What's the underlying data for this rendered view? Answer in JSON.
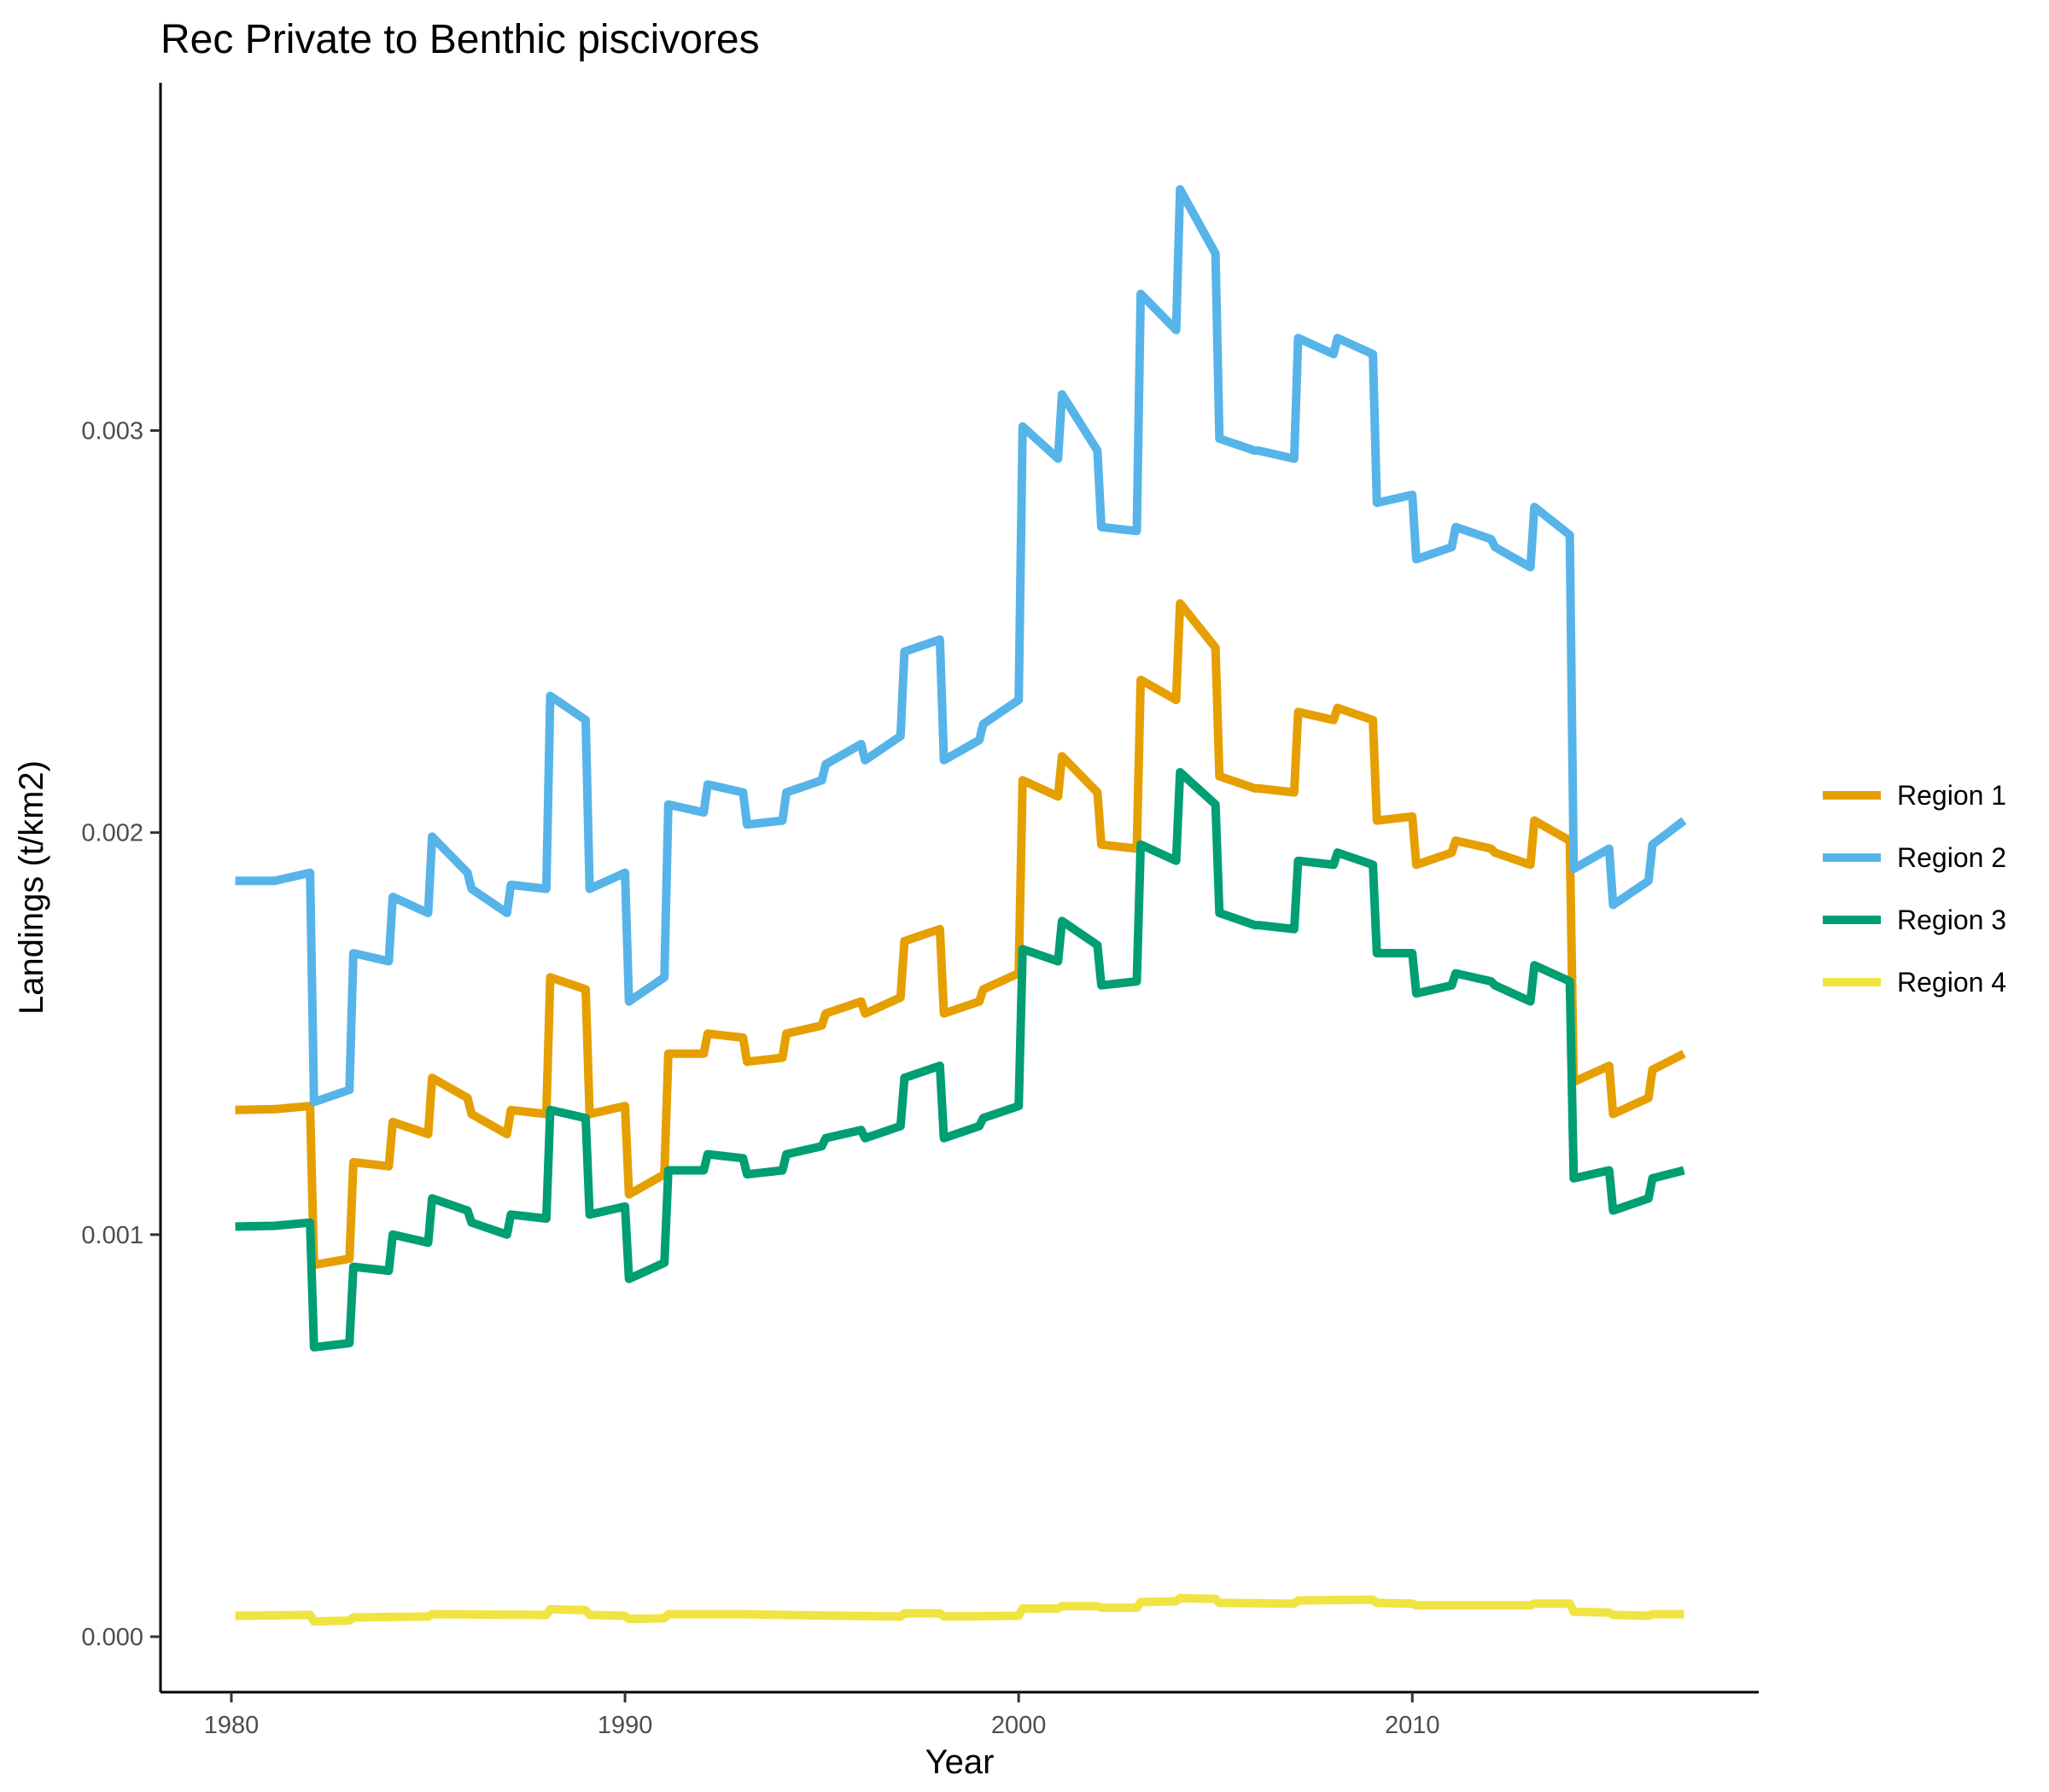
{
  "chart_data": {
    "type": "line",
    "title": "Rec Private to Benthic piscivores",
    "xlabel": "Year",
    "ylabel": "Landings (t/km2)",
    "xlim": [
      1978.2,
      2018.8
    ],
    "ylim": [
      -0.000138,
      0.003865
    ],
    "x_ticks": [
      1980,
      1990,
      2000,
      2010
    ],
    "y_ticks": [
      0.0,
      0.001,
      0.002,
      0.003
    ],
    "y_tick_labels": [
      "0.000",
      "0.001",
      "0.002",
      "0.003"
    ],
    "grid": false,
    "legend_position": "right",
    "colors": [
      "#E69F00",
      "#56B4E9",
      "#009E73",
      "#F0E442"
    ],
    "series": [
      {
        "name": "Region 1",
        "points": [
          [
            1980.1,
            0.00131
          ],
          [
            1981.1,
            0.001312
          ],
          [
            1982,
            0.00132
          ],
          [
            1982.1,
            0.000925
          ],
          [
            1983,
            0.00094
          ],
          [
            1983.1,
            0.00118
          ],
          [
            1984,
            0.00117
          ],
          [
            1984.1,
            0.00128
          ],
          [
            1985,
            0.00125
          ],
          [
            1985.1,
            0.00139
          ],
          [
            1986,
            0.00134
          ],
          [
            1986.1,
            0.0013
          ],
          [
            1987,
            0.00125
          ],
          [
            1987.1,
            0.00131
          ],
          [
            1988,
            0.0013
          ],
          [
            1988.1,
            0.00164
          ],
          [
            1989,
            0.00161
          ],
          [
            1989.1,
            0.0013
          ],
          [
            1990,
            0.00132
          ],
          [
            1990.1,
            0.0011
          ],
          [
            1991,
            0.00115
          ],
          [
            1991.1,
            0.00145
          ],
          [
            1992,
            0.00145
          ],
          [
            1992.1,
            0.0015
          ],
          [
            1993,
            0.00149
          ],
          [
            1993.1,
            0.00143
          ],
          [
            1994,
            0.00144
          ],
          [
            1994.1,
            0.0015
          ],
          [
            1995,
            0.00152
          ],
          [
            1995.1,
            0.00155
          ],
          [
            1996,
            0.00158
          ],
          [
            1996.1,
            0.00155
          ],
          [
            1997,
            0.00159
          ],
          [
            1997.1,
            0.00173
          ],
          [
            1998,
            0.00176
          ],
          [
            1998.1,
            0.00155
          ],
          [
            1999,
            0.00158
          ],
          [
            1999.1,
            0.00161
          ],
          [
            2000,
            0.00165
          ],
          [
            2000.1,
            0.00213
          ],
          [
            2001,
            0.00209
          ],
          [
            2001.1,
            0.00219
          ],
          [
            2002,
            0.0021
          ],
          [
            2002.1,
            0.00197
          ],
          [
            2003,
            0.00196
          ],
          [
            2003.1,
            0.00238
          ],
          [
            2004,
            0.00233
          ],
          [
            2004.1,
            0.00257
          ],
          [
            2005,
            0.00246
          ],
          [
            2005.1,
            0.00214
          ],
          [
            2006,
            0.00211
          ],
          [
            2006.1,
            0.00211
          ],
          [
            2007,
            0.0021
          ],
          [
            2007.1,
            0.0023
          ],
          [
            2008,
            0.00228
          ],
          [
            2008.1,
            0.00231
          ],
          [
            2009,
            0.00228
          ],
          [
            2009.1,
            0.00203
          ],
          [
            2010,
            0.00204
          ],
          [
            2010.1,
            0.00192
          ],
          [
            2011,
            0.00195
          ],
          [
            2011.1,
            0.00198
          ],
          [
            2012,
            0.00196
          ],
          [
            2012.1,
            0.00195
          ],
          [
            2013,
            0.00192
          ],
          [
            2013.1,
            0.00203
          ],
          [
            2014,
            0.00198
          ],
          [
            2014.1,
            0.00138
          ],
          [
            2015,
            0.00142
          ],
          [
            2015.1,
            0.0013
          ],
          [
            2016,
            0.00134
          ],
          [
            2016.1,
            0.00141
          ],
          [
            2016.9,
            0.00145
          ]
        ]
      },
      {
        "name": "Region 2",
        "points": [
          [
            1980.1,
            0.00188
          ],
          [
            1981.1,
            0.00188
          ],
          [
            1982,
            0.0019
          ],
          [
            1982.1,
            0.00133
          ],
          [
            1983,
            0.00136
          ],
          [
            1983.1,
            0.0017
          ],
          [
            1984,
            0.00168
          ],
          [
            1984.1,
            0.00184
          ],
          [
            1985,
            0.0018
          ],
          [
            1985.1,
            0.00199
          ],
          [
            1986,
            0.0019
          ],
          [
            1986.1,
            0.00186
          ],
          [
            1987,
            0.0018
          ],
          [
            1987.1,
            0.00187
          ],
          [
            1988,
            0.00186
          ],
          [
            1988.1,
            0.00234
          ],
          [
            1989,
            0.00228
          ],
          [
            1989.1,
            0.00186
          ],
          [
            1990,
            0.0019
          ],
          [
            1990.1,
            0.00158
          ],
          [
            1991,
            0.00164
          ],
          [
            1991.1,
            0.00207
          ],
          [
            1992,
            0.00205
          ],
          [
            1992.1,
            0.00212
          ],
          [
            1993,
            0.0021
          ],
          [
            1993.1,
            0.00202
          ],
          [
            1994,
            0.00203
          ],
          [
            1994.1,
            0.0021
          ],
          [
            1995,
            0.00213
          ],
          [
            1995.1,
            0.00217
          ],
          [
            1996,
            0.00222
          ],
          [
            1996.1,
            0.00218
          ],
          [
            1997,
            0.00224
          ],
          [
            1997.1,
            0.00245
          ],
          [
            1998,
            0.00248
          ],
          [
            1998.1,
            0.00218
          ],
          [
            1999,
            0.00223
          ],
          [
            1999.1,
            0.00227
          ],
          [
            2000,
            0.00233
          ],
          [
            2000.1,
            0.00301
          ],
          [
            2001,
            0.00293
          ],
          [
            2001.1,
            0.00309
          ],
          [
            2002,
            0.00295
          ],
          [
            2002.1,
            0.00276
          ],
          [
            2003,
            0.00275
          ],
          [
            2003.1,
            0.00334
          ],
          [
            2004,
            0.00325
          ],
          [
            2004.1,
            0.0036
          ],
          [
            2005,
            0.00344
          ],
          [
            2005.1,
            0.00298
          ],
          [
            2006,
            0.00295
          ],
          [
            2006.1,
            0.00295
          ],
          [
            2007,
            0.00293
          ],
          [
            2007.1,
            0.00323
          ],
          [
            2008,
            0.00319
          ],
          [
            2008.1,
            0.00323
          ],
          [
            2009,
            0.00319
          ],
          [
            2009.1,
            0.00282
          ],
          [
            2010,
            0.00284
          ],
          [
            2010.1,
            0.00268
          ],
          [
            2011,
            0.00271
          ],
          [
            2011.1,
            0.00276
          ],
          [
            2012,
            0.00273
          ],
          [
            2012.1,
            0.00271
          ],
          [
            2013,
            0.00266
          ],
          [
            2013.1,
            0.00281
          ],
          [
            2014,
            0.00274
          ],
          [
            2014.1,
            0.00191
          ],
          [
            2015,
            0.00196
          ],
          [
            2015.1,
            0.00182
          ],
          [
            2016,
            0.00188
          ],
          [
            2016.1,
            0.00197
          ],
          [
            2016.9,
            0.00203
          ]
        ]
      },
      {
        "name": "Region 3",
        "points": [
          [
            1980.1,
            0.00102
          ],
          [
            1981.1,
            0.001022
          ],
          [
            1982,
            0.00103
          ],
          [
            1982.1,
            0.00072
          ],
          [
            1983,
            0.00073
          ],
          [
            1983.1,
            0.00092
          ],
          [
            1984,
            0.00091
          ],
          [
            1984.1,
            0.001
          ],
          [
            1985,
            0.00098
          ],
          [
            1985.1,
            0.00109
          ],
          [
            1986,
            0.00106
          ],
          [
            1986.1,
            0.00103
          ],
          [
            1987,
            0.001
          ],
          [
            1987.1,
            0.00105
          ],
          [
            1988,
            0.00104
          ],
          [
            1988.1,
            0.00131
          ],
          [
            1989,
            0.00129
          ],
          [
            1989.1,
            0.00105
          ],
          [
            1990,
            0.00107
          ],
          [
            1990.1,
            0.00089
          ],
          [
            1991,
            0.00093
          ],
          [
            1991.1,
            0.00116
          ],
          [
            1992,
            0.00116
          ],
          [
            1992.1,
            0.0012
          ],
          [
            1993,
            0.00119
          ],
          [
            1993.1,
            0.00115
          ],
          [
            1994,
            0.00116
          ],
          [
            1994.1,
            0.0012
          ],
          [
            1995,
            0.00122
          ],
          [
            1995.1,
            0.00124
          ],
          [
            1996,
            0.00126
          ],
          [
            1996.1,
            0.00124
          ],
          [
            1997,
            0.00127
          ],
          [
            1997.1,
            0.00139
          ],
          [
            1998,
            0.00142
          ],
          [
            1998.1,
            0.00124
          ],
          [
            1999,
            0.00127
          ],
          [
            1999.1,
            0.00129
          ],
          [
            2000,
            0.00132
          ],
          [
            2000.1,
            0.00171
          ],
          [
            2001,
            0.00168
          ],
          [
            2001.1,
            0.00178
          ],
          [
            2002,
            0.00172
          ],
          [
            2002.1,
            0.00162
          ],
          [
            2003,
            0.00163
          ],
          [
            2003.1,
            0.00197
          ],
          [
            2004,
            0.00193
          ],
          [
            2004.1,
            0.00215
          ],
          [
            2005,
            0.00207
          ],
          [
            2005.1,
            0.0018
          ],
          [
            2006,
            0.00177
          ],
          [
            2006.1,
            0.00177
          ],
          [
            2007,
            0.00176
          ],
          [
            2007.1,
            0.00193
          ],
          [
            2008,
            0.00192
          ],
          [
            2008.1,
            0.00195
          ],
          [
            2009,
            0.00192
          ],
          [
            2009.1,
            0.0017
          ],
          [
            2010,
            0.0017
          ],
          [
            2010.1,
            0.0016
          ],
          [
            2011,
            0.00162
          ],
          [
            2011.1,
            0.00165
          ],
          [
            2012,
            0.00163
          ],
          [
            2012.1,
            0.00162
          ],
          [
            2013,
            0.00158
          ],
          [
            2013.1,
            0.00167
          ],
          [
            2014,
            0.00163
          ],
          [
            2014.1,
            0.00114
          ],
          [
            2015,
            0.00116
          ],
          [
            2015.1,
            0.00106
          ],
          [
            2016,
            0.00109
          ],
          [
            2016.1,
            0.00114
          ],
          [
            2016.9,
            0.00116
          ]
        ]
      },
      {
        "name": "Region 4",
        "points": [
          [
            1980.1,
            5.2e-05
          ],
          [
            1982,
            5.4e-05
          ],
          [
            1982.1,
            3.8e-05
          ],
          [
            1983,
            4e-05
          ],
          [
            1983.1,
            4.8e-05
          ],
          [
            1985,
            5e-05
          ],
          [
            1985.1,
            5.6e-05
          ],
          [
            1988,
            5.4e-05
          ],
          [
            1988.1,
            6.8e-05
          ],
          [
            1989,
            6.6e-05
          ],
          [
            1989.1,
            5.4e-05
          ],
          [
            1990,
            5.2e-05
          ],
          [
            1990.1,
            4.4e-05
          ],
          [
            1991,
            4.6e-05
          ],
          [
            1991.1,
            5.6e-05
          ],
          [
            1993,
            5.6e-05
          ],
          [
            1994,
            5.4e-05
          ],
          [
            1997,
            5e-05
          ],
          [
            1997.1,
            5.8e-05
          ],
          [
            1998,
            5.8e-05
          ],
          [
            1998.1,
            5e-05
          ],
          [
            2000,
            5.2e-05
          ],
          [
            2000.1,
            7e-05
          ],
          [
            2001,
            7e-05
          ],
          [
            2001.1,
            7.6e-05
          ],
          [
            2002,
            7.6e-05
          ],
          [
            2002.1,
            7.2e-05
          ],
          [
            2003,
            7.2e-05
          ],
          [
            2003.1,
            8.6e-05
          ],
          [
            2004,
            8.8e-05
          ],
          [
            2004.1,
            9.6e-05
          ],
          [
            2005,
            9.4e-05
          ],
          [
            2005.1,
            8.4e-05
          ],
          [
            2007,
            8.2e-05
          ],
          [
            2007.1,
            9e-05
          ],
          [
            2009,
            9.2e-05
          ],
          [
            2009.1,
            8.4e-05
          ],
          [
            2010,
            8.2e-05
          ],
          [
            2010.1,
            7.8e-05
          ],
          [
            2013,
            7.8e-05
          ],
          [
            2013.1,
            8.2e-05
          ],
          [
            2014,
            8.2e-05
          ],
          [
            2014.1,
            6.2e-05
          ],
          [
            2015,
            6e-05
          ],
          [
            2015.1,
            5.4e-05
          ],
          [
            2016,
            5.2e-05
          ],
          [
            2016.1,
            5.6e-05
          ],
          [
            2016.9,
            5.6e-05
          ]
        ]
      }
    ]
  }
}
